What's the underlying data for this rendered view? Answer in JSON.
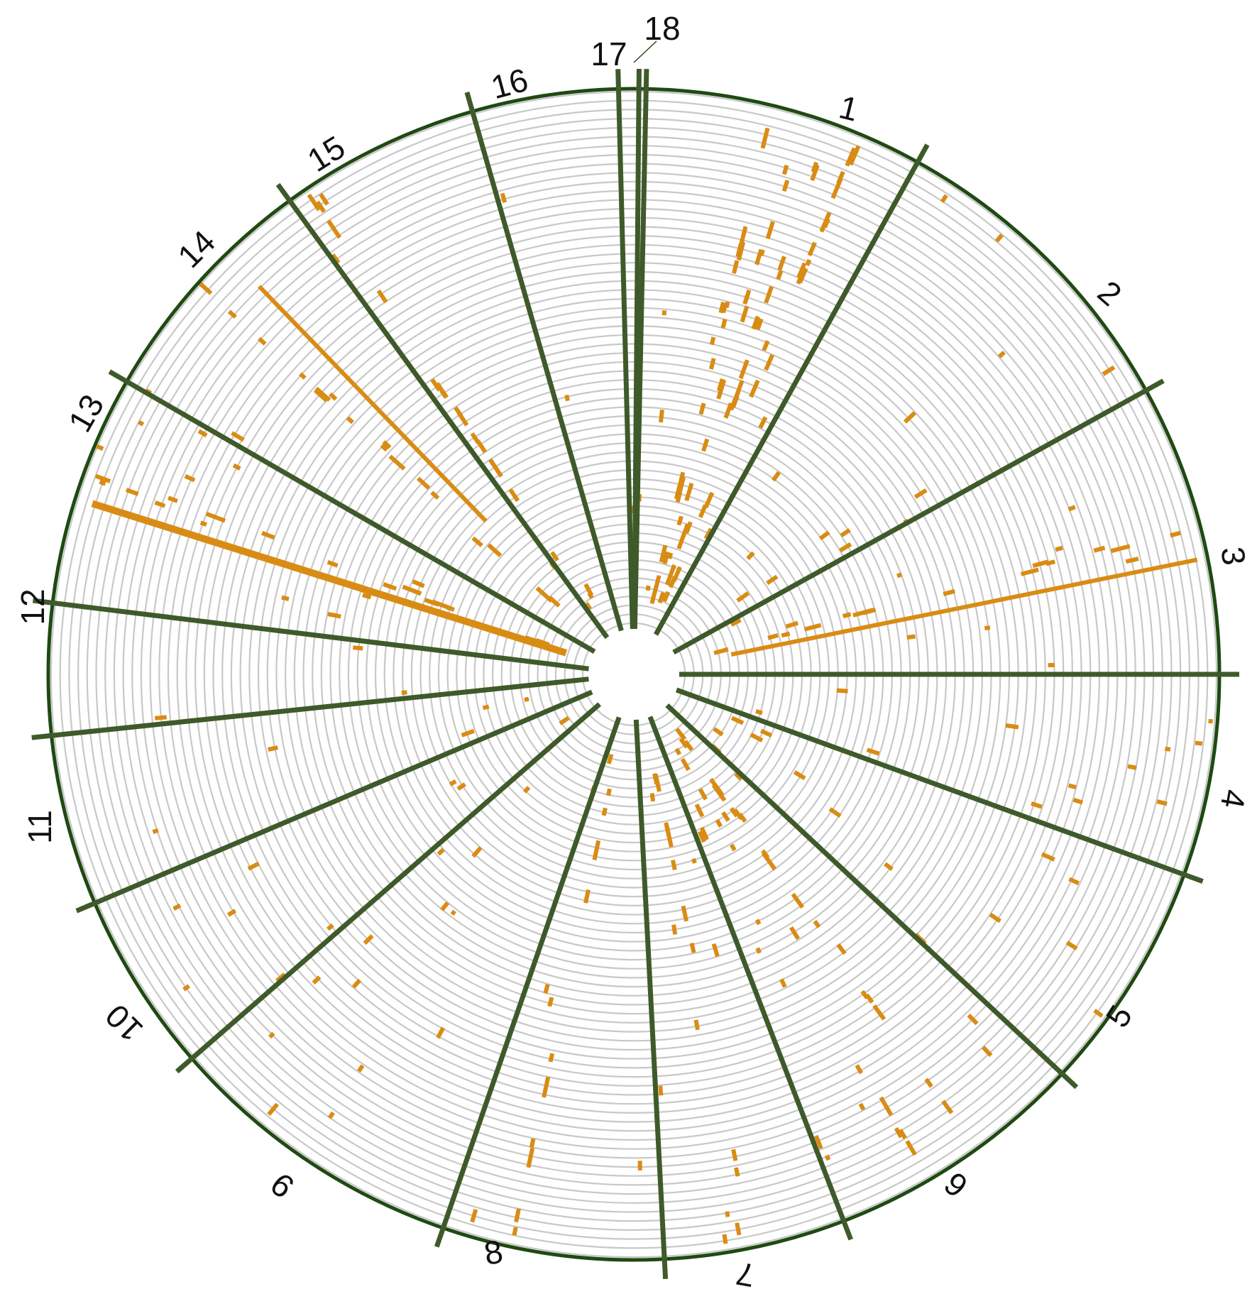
{
  "diagram": {
    "colors": {
      "track": "#c8c8c8",
      "outline": "#1f4a12",
      "divider": "#3f5a2a",
      "feature": "#d98c14",
      "hub": "#ffffff"
    },
    "track_count": 60,
    "segments": [
      {
        "label": "1"
      },
      {
        "label": "2"
      },
      {
        "label": "3"
      },
      {
        "label": "4"
      },
      {
        "label": "5"
      },
      {
        "label": "6"
      },
      {
        "label": "7"
      },
      {
        "label": "8"
      },
      {
        "label": "9"
      },
      {
        "label": "10"
      },
      {
        "label": "11"
      },
      {
        "label": "12"
      },
      {
        "label": "13"
      },
      {
        "label": "14"
      },
      {
        "label": "15"
      },
      {
        "label": "16"
      },
      {
        "label": "17"
      },
      {
        "label": "18"
      }
    ]
  }
}
